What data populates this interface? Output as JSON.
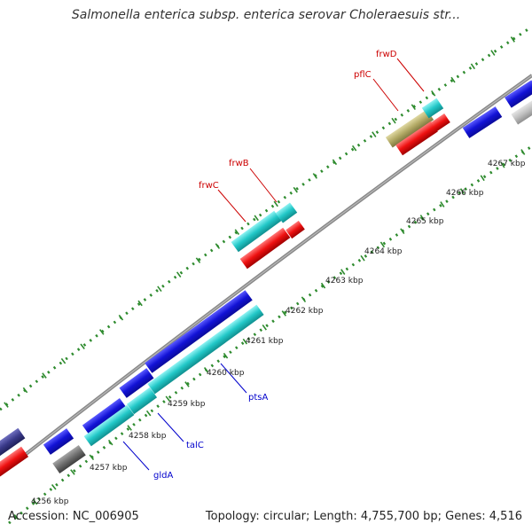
{
  "title": "Salmonella enterica subsp. enterica serovar Choleraesuis str...",
  "footer": {
    "accession": "Accession: NC_006905",
    "topology": "Topology: circular; Length: 4,755,700 bp; Genes: 4,516"
  },
  "colors": {
    "backbone": "#808080",
    "tick": "#2e8b2e",
    "label_forward": "#cc0000",
    "label_reverse": "#0000cc",
    "gene_blue": "#1212d6",
    "gene_cyan": "#22c8c8",
    "gene_red": "#ee1111",
    "gene_olive": "#b3aa66",
    "gene_gray": "#6e6e6e",
    "gene_lightgray": "#c0c0c0",
    "gene_navy": "#3a3a8a"
  },
  "scale_labels": [
    "4256 kbp",
    "4257 kbp",
    "4258 kbp",
    "4259 kbp",
    "4260 kbp",
    "4261 kbp",
    "4262 kbp",
    "4263 kbp",
    "4264 kbp",
    "4265 kbp",
    "4266 kbp",
    "4267 kbp"
  ],
  "gene_labels": [
    {
      "name": "gldA",
      "strand": "reverse"
    },
    {
      "name": "talC",
      "strand": "reverse"
    },
    {
      "name": "ptsA",
      "strand": "reverse"
    },
    {
      "name": "frwC",
      "strand": "forward"
    },
    {
      "name": "frwB",
      "strand": "forward"
    },
    {
      "name": "pflC",
      "strand": "forward"
    },
    {
      "name": "frwD",
      "strand": "forward"
    }
  ]
}
